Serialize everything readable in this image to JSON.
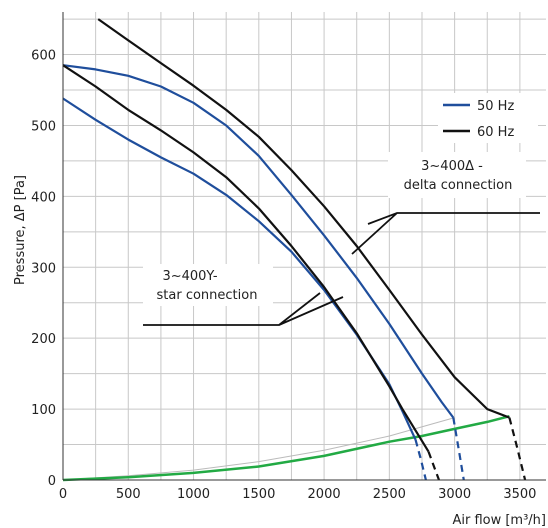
{
  "chart_data": {
    "type": "line",
    "xlabel": "Air flow [m³/h]",
    "ylabel": "Pressure, ΔP [Pa]",
    "xlim": [
      0,
      3700
    ],
    "ylim": [
      0,
      660
    ],
    "x_ticks": [
      0,
      500,
      1000,
      1500,
      2000,
      2500,
      3000,
      3500
    ],
    "y_ticks": [
      0,
      100,
      200,
      300,
      400,
      500,
      600
    ],
    "grid": true,
    "legend_position": "top-right",
    "legend": [
      {
        "name": "50 Hz",
        "color": "#1f4e9c"
      },
      {
        "name": "60 Hz",
        "color": "#111111"
      }
    ],
    "annotations": [
      {
        "text_lines": [
          "3~400Δ -",
          "delta connection"
        ]
      },
      {
        "text_lines": [
          "3~400Y-",
          "star connection"
        ]
      }
    ],
    "series": [
      {
        "name": "50 Hz",
        "color": "#1f4e9c",
        "curves": [
          {
            "solid": [
              [
                0,
                538
              ],
              [
                250,
                508
              ],
              [
                500,
                480
              ],
              [
                750,
                455
              ],
              [
                1000,
                432
              ],
              [
                1250,
                402
              ],
              [
                1500,
                365
              ],
              [
                1750,
                322
              ],
              [
                2000,
                268
              ],
              [
                2250,
                205
              ],
              [
                2500,
                135
              ],
              [
                2600,
                97
              ],
              [
                2700,
                57
              ]
            ],
            "dashed": [
              [
                2700,
                57
              ],
              [
                2740,
                30
              ],
              [
                2780,
                0
              ]
            ]
          },
          {
            "solid": [
              [
                0,
                585
              ],
              [
                250,
                579
              ],
              [
                500,
                570
              ],
              [
                750,
                555
              ],
              [
                1000,
                532
              ],
              [
                1250,
                500
              ],
              [
                1500,
                457
              ],
              [
                1750,
                402
              ],
              [
                2000,
                345
              ],
              [
                2250,
                285
              ],
              [
                2500,
                220
              ],
              [
                2750,
                150
              ],
              [
                2900,
                110
              ],
              [
                2990,
                88
              ]
            ],
            "dashed": [
              [
                2990,
                88
              ],
              [
                3030,
                45
              ],
              [
                3070,
                0
              ]
            ]
          }
        ]
      },
      {
        "name": "60 Hz",
        "color": "#111111",
        "curves": [
          {
            "solid": [
              [
                0,
                585
              ],
              [
                250,
                555
              ],
              [
                500,
                522
              ],
              [
                750,
                493
              ],
              [
                1000,
                462
              ],
              [
                1250,
                427
              ],
              [
                1500,
                383
              ],
              [
                1750,
                330
              ],
              [
                2000,
                272
              ],
              [
                2250,
                207
              ],
              [
                2500,
                132
              ],
              [
                2600,
                100
              ],
              [
                2800,
                40
              ]
            ],
            "dashed": [
              [
                2800,
                40
              ],
              [
                2840,
                20
              ],
              [
                2880,
                0
              ]
            ]
          },
          {
            "solid": [
              [
                270,
                650
              ],
              [
                500,
                620
              ],
              [
                750,
                588
              ],
              [
                1000,
                556
              ],
              [
                1250,
                522
              ],
              [
                1500,
                484
              ],
              [
                1750,
                437
              ],
              [
                2000,
                386
              ],
              [
                2250,
                330
              ],
              [
                2500,
                268
              ],
              [
                2750,
                205
              ],
              [
                3000,
                145
              ],
              [
                3250,
                100
              ],
              [
                3420,
                88
              ]
            ],
            "dashed": [
              [
                3420,
                88
              ],
              [
                3480,
                45
              ],
              [
                3540,
                0
              ]
            ]
          }
        ]
      },
      {
        "name": "system curve",
        "color": "#22aa44",
        "points": [
          [
            0,
            0
          ],
          [
            500,
            4
          ],
          [
            1000,
            10
          ],
          [
            1500,
            19
          ],
          [
            2000,
            34
          ],
          [
            2500,
            54
          ],
          [
            2750,
            62
          ],
          [
            3000,
            72
          ],
          [
            3250,
            82
          ],
          [
            3420,
            90
          ]
        ]
      },
      {
        "name": "system curve (thin)",
        "color": "#bbbbbb",
        "points": [
          [
            0,
            0
          ],
          [
            500,
            6
          ],
          [
            1000,
            14
          ],
          [
            1500,
            26
          ],
          [
            2000,
            42
          ],
          [
            2500,
            62
          ],
          [
            3000,
            88
          ]
        ]
      }
    ]
  }
}
